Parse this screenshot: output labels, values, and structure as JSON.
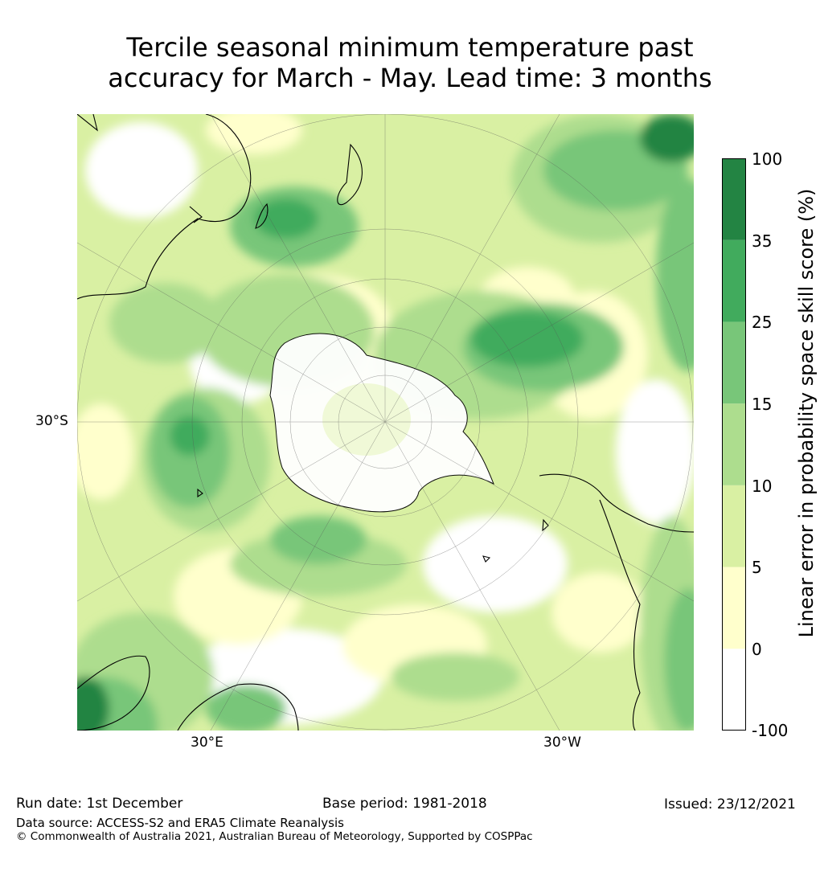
{
  "title_line1": "Tercile seasonal minimum temperature past",
  "title_line2": "accuracy for March - May. Lead time: 3 months",
  "map": {
    "projection": "south-polar stereographic",
    "lat_label": "30°S",
    "lon_label_east": "30°E",
    "lon_label_west": "30°W"
  },
  "colorbar": {
    "label": "Linear error in probability space skill score (%)",
    "ticks": [
      "100",
      "35",
      "25",
      "15",
      "10",
      "5",
      "0",
      "-100"
    ],
    "bins": [
      {
        "from": "-100",
        "to": "0",
        "color": "#ffffff"
      },
      {
        "from": "0",
        "to": "5",
        "color": "#ffffcc"
      },
      {
        "from": "5",
        "to": "10",
        "color": "#d9f0a3"
      },
      {
        "from": "10",
        "to": "15",
        "color": "#addd8e"
      },
      {
        "from": "15",
        "to": "25",
        "color": "#78c679"
      },
      {
        "from": "25",
        "to": "35",
        "color": "#41ab5d"
      },
      {
        "from": "35",
        "to": "100",
        "color": "#238443"
      }
    ]
  },
  "footer": {
    "run_date": "Run date: 1st December",
    "base_period": "Base period: 1981-2018",
    "issued": "Issued: 23/12/2021",
    "data_source": "Data source: ACCESS-S2 and ERA5 Climate Reanalysis",
    "copyright": "© Commonwealth of Australia 2021, Australian Bureau of Meteorology, Supported by COSPPac"
  }
}
